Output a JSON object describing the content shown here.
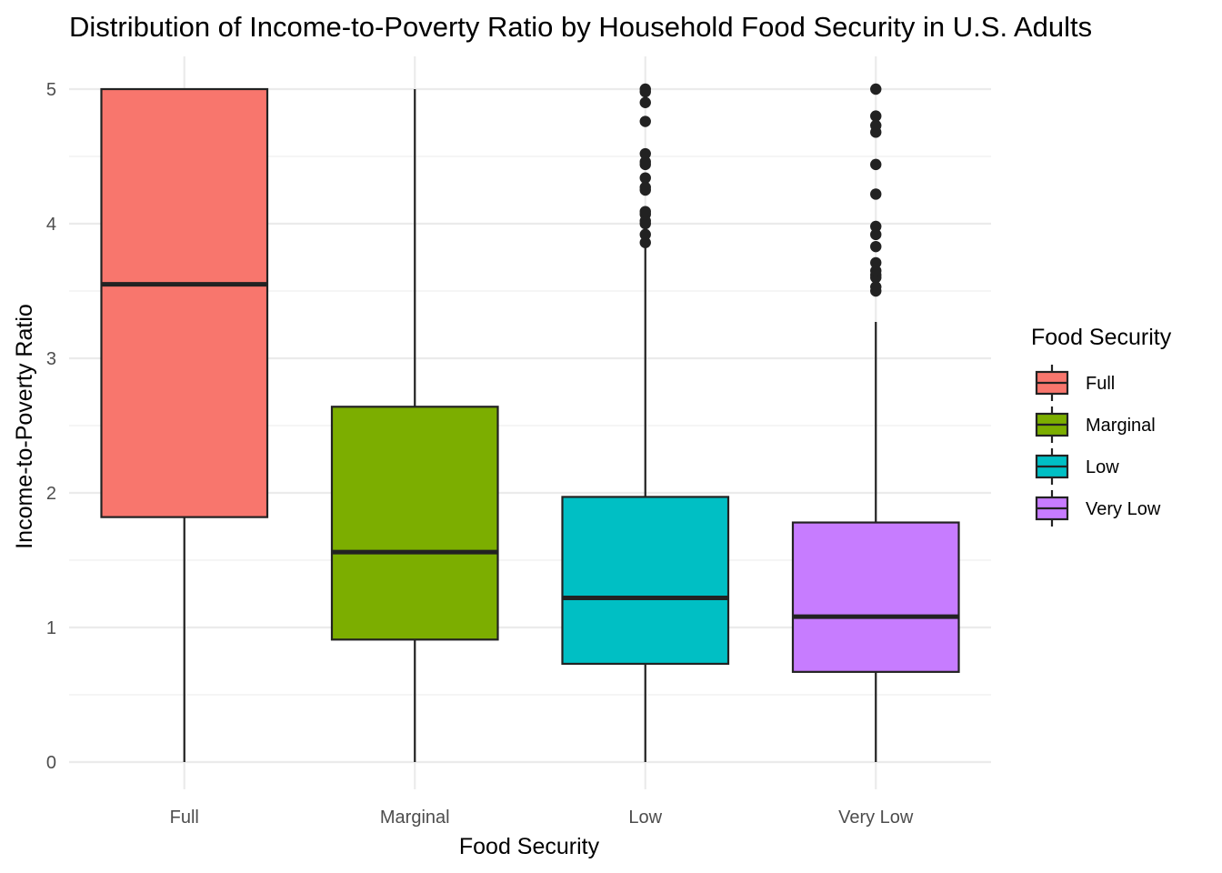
{
  "chart_data": {
    "type": "box",
    "title": "Distribution of Income-to-Poverty Ratio by Household Food Security in U.S. Adults",
    "xlabel": "Food Security",
    "ylabel": "Income-to-Poverty Ratio",
    "ylim": [
      -0.2,
      5.25
    ],
    "yticks": [
      0,
      1,
      2,
      3,
      4,
      5
    ],
    "grid": true,
    "legend": {
      "title": "Food Security",
      "position": "right"
    },
    "categories": [
      "Full",
      "Marginal",
      "Low",
      "Very Low"
    ],
    "series": [
      {
        "name": "Full",
        "color": "#F8766D",
        "min": 0,
        "q1": 1.82,
        "median": 3.55,
        "q3": 5.0,
        "max": 5.0,
        "outliers": []
      },
      {
        "name": "Marginal",
        "color": "#7CAE00",
        "min": 0,
        "q1": 0.91,
        "median": 1.56,
        "q3": 2.64,
        "max": 5.0,
        "outliers": []
      },
      {
        "name": "Low",
        "color": "#00BFC4",
        "min": 0,
        "q1": 0.73,
        "median": 1.22,
        "q3": 1.97,
        "max": 3.85,
        "outliers": [
          3.86,
          3.92,
          4.0,
          4.02,
          4.07,
          4.09,
          4.25,
          4.27,
          4.34,
          4.44,
          4.46,
          4.52,
          4.76,
          4.9,
          4.98,
          5.0
        ]
      },
      {
        "name": "Very Low",
        "color": "#C77CFF",
        "min": 0,
        "q1": 0.67,
        "median": 1.08,
        "q3": 1.78,
        "max": 3.27,
        "outliers": [
          3.5,
          3.53,
          3.6,
          3.62,
          3.65,
          3.71,
          3.83,
          3.92,
          3.98,
          4.22,
          4.44,
          4.68,
          4.73,
          4.8,
          5.0
        ]
      }
    ]
  }
}
